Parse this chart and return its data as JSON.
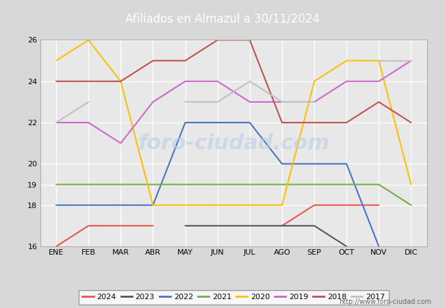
{
  "title": "Afiliados en Almazul a 30/11/2024",
  "months": [
    "ENE",
    "FEB",
    "MAR",
    "ABR",
    "MAY",
    "JUN",
    "JUL",
    "AGO",
    "SEP",
    "OCT",
    "NOV",
    "DIC"
  ],
  "ylim": [
    16,
    26
  ],
  "yticks": [
    16,
    18,
    19,
    20,
    22,
    24,
    26
  ],
  "series": {
    "2024": {
      "color": "#e8534a",
      "data": [
        16,
        17,
        17,
        17,
        null,
        null,
        null,
        17,
        18,
        18,
        18,
        null
      ],
      "linewidth": 1.5
    },
    "2023": {
      "color": "#555555",
      "data": [
        null,
        null,
        null,
        null,
        17,
        17,
        17,
        17,
        17,
        16,
        null,
        null
      ],
      "linewidth": 1.5
    },
    "2022": {
      "color": "#4472c4",
      "data": [
        18,
        18,
        18,
        18,
        22,
        22,
        22,
        20,
        20,
        20,
        16,
        null
      ],
      "linewidth": 1.5
    },
    "2021": {
      "color": "#70ad47",
      "data": [
        19,
        19,
        19,
        19,
        19,
        19,
        19,
        19,
        19,
        19,
        19,
        18
      ],
      "linewidth": 1.5
    },
    "2020": {
      "color": "#ffc000",
      "data": [
        25,
        26,
        24,
        18,
        18,
        18,
        18,
        18,
        24,
        25,
        25,
        19
      ],
      "linewidth": 1.5
    },
    "2019": {
      "color": "#cc66cc",
      "data": [
        22,
        22,
        21,
        23,
        24,
        24,
        23,
        23,
        23,
        24,
        24,
        25
      ],
      "linewidth": 1.5
    },
    "2018": {
      "color": "#c0504d",
      "data": [
        24,
        24,
        24,
        25,
        25,
        26,
        26,
        22,
        22,
        22,
        23,
        22
      ],
      "linewidth": 1.5
    },
    "2017": {
      "color": "#c0c0c0",
      "data": [
        22,
        23,
        null,
        null,
        23,
        23,
        24,
        23,
        23,
        null,
        25,
        25
      ],
      "linewidth": 1.5
    }
  },
  "url": "http://www.foro-ciudad.com",
  "header_bg": "#4472aa",
  "plot_bg": "#e8e8e8",
  "fig_bg": "#d8d8d8",
  "grid_color": "#ffffff",
  "watermark_text": "foro-ciudad.com",
  "watermark_color": "#b8cce4",
  "title_fontsize": 12,
  "tick_fontsize": 8,
  "legend_fontsize": 8
}
